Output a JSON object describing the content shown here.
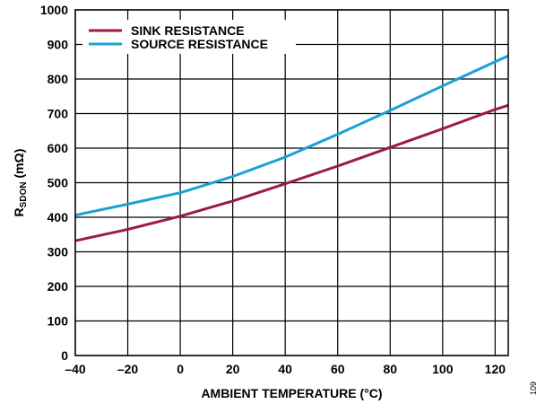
{
  "chart_data": {
    "type": "line",
    "xlabel": "AMBIENT TEMPERATURE (°C)",
    "ylabel": {
      "main": "R",
      "sub": "SDON",
      "unit": " (mΩ)"
    },
    "xlim": [
      -40,
      125
    ],
    "ylim": [
      0,
      1000
    ],
    "x_ticks": [
      -40,
      -20,
      0,
      20,
      40,
      60,
      80,
      100,
      120
    ],
    "x_tick_labels": [
      "–40",
      "–20",
      "0",
      "20",
      "40",
      "60",
      "80",
      "100",
      "120"
    ],
    "y_ticks": [
      0,
      100,
      200,
      300,
      400,
      500,
      600,
      700,
      800,
      900,
      1000
    ],
    "y_tick_labels": [
      "0",
      "100",
      "200",
      "300",
      "400",
      "500",
      "600",
      "700",
      "800",
      "900",
      "1000"
    ],
    "grid": true,
    "legend_position": "top-left",
    "series": [
      {
        "name": "SINK RESISTANCE",
        "color": "#9b1b45",
        "x": [
          -40,
          -20,
          0,
          20,
          40,
          60,
          80,
          100,
          120,
          125
        ],
        "y": [
          332,
          365,
          403,
          447,
          497,
          548,
          602,
          656,
          712,
          724
        ]
      },
      {
        "name": "SOURCE RESISTANCE",
        "color": "#1aa0d6",
        "x": [
          -40,
          -20,
          0,
          20,
          40,
          60,
          80,
          100,
          120,
          125
        ],
        "y": [
          406,
          438,
          471,
          518,
          574,
          640,
          709,
          780,
          850,
          867
        ]
      }
    ],
    "figure_id": "109"
  }
}
